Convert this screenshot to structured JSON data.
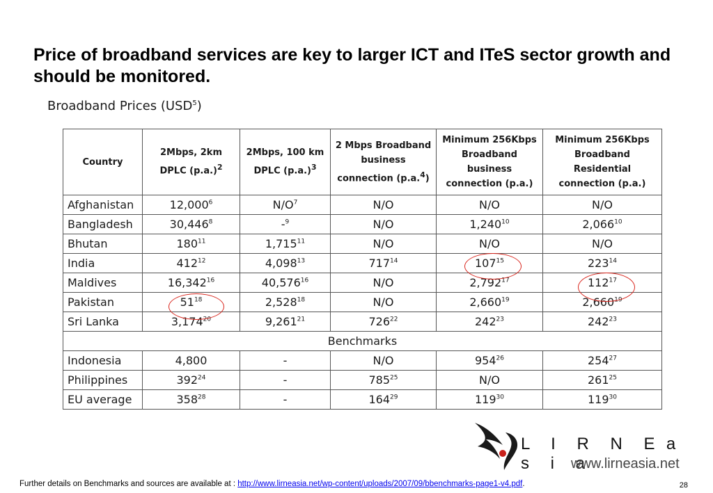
{
  "title": "Price of broadband services are key to larger ICT and ITeS sector growth and should be monitored.",
  "table_caption": {
    "text": "Broadband Prices (USD",
    "sup": "5",
    "close": ")"
  },
  "headers": [
    {
      "text": "Country",
      "sup": ""
    },
    {
      "text": "2Mbps, 2km DPLC (p.a.)",
      "sup": "2"
    },
    {
      "text": "2Mbps, 100 km DPLC (p.a.)",
      "sup": "3"
    },
    {
      "text": "2 Mbps Broadband business connection (p.a.",
      "sup": "4",
      "close": ")"
    },
    {
      "text": "Minimum 256Kbps Broadband business connection  (p.a.)",
      "sup": ""
    },
    {
      "text": "Minimum 256Kbps Broadband Residential connection (p.a.)",
      "sup": ""
    }
  ],
  "rows": [
    {
      "country": "Afghanistan",
      "cells": [
        {
          "v": "12,000",
          "s": "6"
        },
        {
          "v": "N/O",
          "s": "7"
        },
        {
          "v": "N/O",
          "s": ""
        },
        {
          "v": "N/O",
          "s": ""
        },
        {
          "v": "N/O",
          "s": ""
        }
      ]
    },
    {
      "country": "Bangladesh",
      "cells": [
        {
          "v": "30,446",
          "s": "8"
        },
        {
          "v": "-",
          "s": "9"
        },
        {
          "v": "N/O",
          "s": ""
        },
        {
          "v": "1,240",
          "s": "10"
        },
        {
          "v": "2,066",
          "s": "10"
        }
      ]
    },
    {
      "country": "Bhutan",
      "cells": [
        {
          "v": "180",
          "s": "11"
        },
        {
          "v": "1,715",
          "s": "11"
        },
        {
          "v": "N/O",
          "s": ""
        },
        {
          "v": "N/O",
          "s": ""
        },
        {
          "v": "N/O",
          "s": ""
        }
      ]
    },
    {
      "country": "India",
      "cells": [
        {
          "v": "412",
          "s": "12"
        },
        {
          "v": "4,098",
          "s": "13"
        },
        {
          "v": "717",
          "s": "14"
        },
        {
          "v": "107",
          "s": "15"
        },
        {
          "v": "223",
          "s": "14"
        }
      ]
    },
    {
      "country": "Maldives",
      "cells": [
        {
          "v": "16,342",
          "s": "16"
        },
        {
          "v": "40,576",
          "s": "16"
        },
        {
          "v": "N/O",
          "s": ""
        },
        {
          "v": "2,792",
          "s": "17"
        },
        {
          "v": "112",
          "s": "17"
        }
      ]
    },
    {
      "country": "Pakistan",
      "cells": [
        {
          "v": "51",
          "s": "18"
        },
        {
          "v": "2,528",
          "s": "18"
        },
        {
          "v": "N/O",
          "s": ""
        },
        {
          "v": "2,660",
          "s": "19"
        },
        {
          "v": "2,660",
          "s": "19"
        }
      ]
    },
    {
      "country": "Sri Lanka",
      "cells": [
        {
          "v": "3,174",
          "s": "20"
        },
        {
          "v": "9,261",
          "s": "21"
        },
        {
          "v": "726",
          "s": "22"
        },
        {
          "v": "242",
          "s": "23"
        },
        {
          "v": "242",
          "s": "23"
        }
      ]
    }
  ],
  "benchmarks_label": "Benchmarks",
  "benchmark_rows": [
    {
      "country": "Indonesia",
      "cells": [
        {
          "v": "4,800",
          "s": ""
        },
        {
          "v": "-",
          "s": ""
        },
        {
          "v": "N/O",
          "s": ""
        },
        {
          "v": "954",
          "s": "26"
        },
        {
          "v": "254",
          "s": "27"
        }
      ]
    },
    {
      "country": "Philippines",
      "cells": [
        {
          "v": "392",
          "s": "24"
        },
        {
          "v": "-",
          "s": ""
        },
        {
          "v": "785",
          "s": "25"
        },
        {
          "v": "N/O",
          "s": ""
        },
        {
          "v": "261",
          "s": "25"
        }
      ]
    },
    {
      "country": "EU average",
      "cells": [
        {
          "v": "358",
          "s": "28"
        },
        {
          "v": "-",
          "s": ""
        },
        {
          "v": "164",
          "s": "29"
        },
        {
          "v": "119",
          "s": "30"
        },
        {
          "v": "119",
          "s": "30"
        }
      ]
    }
  ],
  "highlight_color": "#d9251c",
  "logo": {
    "main": "L I R N E",
    "asia": "a s i a",
    "url": "www.lirneasia.net"
  },
  "footer": {
    "prefix": "Further details on Benchmarks and sources are available at : ",
    "link": "http://www.lirneasia.net/wp-content/uploads/2007/09/bbenchmarks-page1-v4.pdf",
    "suffix": "."
  },
  "page_number": "28"
}
